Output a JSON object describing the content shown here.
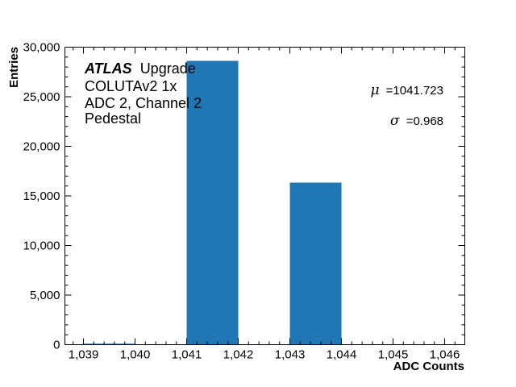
{
  "chart_data": {
    "type": "bar",
    "title": "",
    "xlabel": "ADC Counts",
    "ylabel": "Entries",
    "xlim": [
      1038.64,
      1046.39
    ],
    "ylim": [
      0,
      30000
    ],
    "x_ticks": [
      "1,039",
      "1,040",
      "1,041",
      "1,042",
      "1,043",
      "1,044",
      "1,045",
      "1,046"
    ],
    "y_ticks": [
      "0",
      "5,000",
      "10,000",
      "15,000",
      "20,000",
      "25,000",
      "30,000"
    ],
    "bins": [
      {
        "left": 1039,
        "right": 1040,
        "value": 100
      },
      {
        "left": 1041,
        "right": 1042,
        "value": 28620
      },
      {
        "left": 1043,
        "right": 1044,
        "value": 16340
      }
    ],
    "categories": [
      "1039-1040",
      "1041-1042",
      "1043-1044"
    ],
    "values": [
      100,
      28620,
      16340
    ],
    "bar_color": "#1f77b4",
    "grid": false,
    "legend": null,
    "annotations": {
      "atlas_label": "ATLAS",
      "atlas_suffix": "Upgrade",
      "line2": "COLUTAv2 1x",
      "line3": "ADC 2, Channel 2",
      "line4": "Pedestal",
      "mu_symbol": "μ",
      "mu_value": "=1041.723",
      "sigma_symbol": "σ",
      "sigma_value": "=0.968"
    }
  }
}
